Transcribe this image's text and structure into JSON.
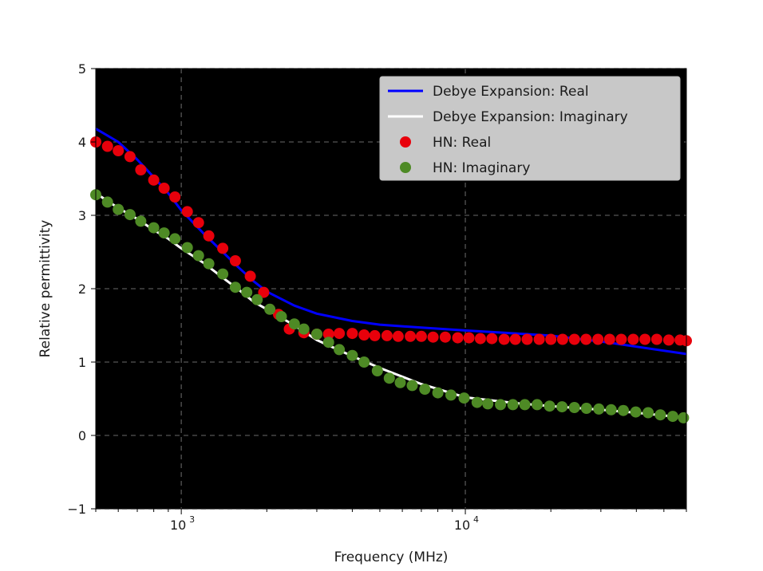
{
  "chart_data": {
    "type": "line",
    "xlabel": "Frequency (MHz)",
    "ylabel": "Relative permittivity",
    "xscale": "log",
    "xlim": [
      500,
      60000
    ],
    "ylim": [
      -1,
      5
    ],
    "yticks": [
      -1,
      0,
      1,
      2,
      3,
      4,
      5
    ],
    "xticks": [
      {
        "value": 1000,
        "label": "10",
        "exp": "3"
      },
      {
        "value": 10000,
        "label": "10",
        "exp": "4"
      }
    ],
    "grid": true,
    "legend_position": "top-right",
    "background": "#000000",
    "series": [
      {
        "name": "Debye Expansion: Real",
        "kind": "line",
        "color": "#0000ff",
        "points": [
          [
            500,
            4.18
          ],
          [
            600,
            4.0
          ],
          [
            700,
            3.76
          ],
          [
            800,
            3.52
          ],
          [
            900,
            3.3
          ],
          [
            1000,
            3.07
          ],
          [
            1200,
            2.75
          ],
          [
            1400,
            2.5
          ],
          [
            1600,
            2.28
          ],
          [
            1800,
            2.1
          ],
          [
            2000,
            1.96
          ],
          [
            2500,
            1.77
          ],
          [
            3000,
            1.66
          ],
          [
            4000,
            1.56
          ],
          [
            5000,
            1.51
          ],
          [
            7000,
            1.47
          ],
          [
            10000,
            1.43
          ],
          [
            15000,
            1.39
          ],
          [
            20000,
            1.36
          ],
          [
            30000,
            1.28
          ],
          [
            40000,
            1.21
          ],
          [
            60000,
            1.11
          ]
        ]
      },
      {
        "name": "Debye Expansion: Imaginary",
        "kind": "line",
        "color": "#ffffff",
        "points": [
          [
            500,
            3.3
          ],
          [
            600,
            3.1
          ],
          [
            700,
            2.95
          ],
          [
            800,
            2.8
          ],
          [
            900,
            2.68
          ],
          [
            1000,
            2.55
          ],
          [
            1200,
            2.35
          ],
          [
            1400,
            2.15
          ],
          [
            1600,
            1.98
          ],
          [
            1800,
            1.82
          ],
          [
            2000,
            1.72
          ],
          [
            2500,
            1.5
          ],
          [
            3000,
            1.3
          ],
          [
            4000,
            1.08
          ],
          [
            5000,
            0.92
          ],
          [
            7000,
            0.7
          ],
          [
            10000,
            0.52
          ],
          [
            15000,
            0.44
          ],
          [
            20000,
            0.4
          ],
          [
            30000,
            0.35
          ],
          [
            40000,
            0.31
          ],
          [
            60000,
            0.24
          ]
        ]
      },
      {
        "name": "HN: Real",
        "kind": "scatter",
        "color": "#e8000b",
        "points": [
          [
            500,
            4.0
          ],
          [
            550,
            3.94
          ],
          [
            600,
            3.88
          ],
          [
            660,
            3.8
          ],
          [
            720,
            3.62
          ],
          [
            800,
            3.48
          ],
          [
            870,
            3.37
          ],
          [
            950,
            3.25
          ],
          [
            1050,
            3.05
          ],
          [
            1150,
            2.9
          ],
          [
            1250,
            2.72
          ],
          [
            1400,
            2.55
          ],
          [
            1550,
            2.38
          ],
          [
            1750,
            2.17
          ],
          [
            1950,
            1.95
          ],
          [
            2200,
            1.65
          ],
          [
            2400,
            1.45
          ],
          [
            2700,
            1.4
          ],
          [
            3000,
            1.38
          ],
          [
            3300,
            1.38
          ],
          [
            3600,
            1.39
          ],
          [
            4000,
            1.39
          ],
          [
            4400,
            1.37
          ],
          [
            4800,
            1.36
          ],
          [
            5300,
            1.36
          ],
          [
            5800,
            1.35
          ],
          [
            6400,
            1.35
          ],
          [
            7000,
            1.35
          ],
          [
            7700,
            1.34
          ],
          [
            8500,
            1.34
          ],
          [
            9400,
            1.33
          ],
          [
            10300,
            1.33
          ],
          [
            11300,
            1.32
          ],
          [
            12400,
            1.32
          ],
          [
            13700,
            1.31
          ],
          [
            15000,
            1.31
          ],
          [
            16500,
            1.31
          ],
          [
            18200,
            1.31
          ],
          [
            20000,
            1.31
          ],
          [
            22000,
            1.31
          ],
          [
            24200,
            1.31
          ],
          [
            26600,
            1.31
          ],
          [
            29300,
            1.31
          ],
          [
            32200,
            1.31
          ],
          [
            35400,
            1.31
          ],
          [
            39000,
            1.31
          ],
          [
            42900,
            1.31
          ],
          [
            47200,
            1.31
          ],
          [
            52000,
            1.3
          ],
          [
            57000,
            1.3
          ],
          [
            60000,
            1.29
          ]
        ]
      },
      {
        "name": "HN: Imaginary",
        "kind": "scatter",
        "color": "#4e8a25",
        "points": [
          [
            500,
            3.28
          ],
          [
            550,
            3.18
          ],
          [
            600,
            3.08
          ],
          [
            660,
            3.01
          ],
          [
            720,
            2.92
          ],
          [
            800,
            2.83
          ],
          [
            870,
            2.76
          ],
          [
            950,
            2.68
          ],
          [
            1050,
            2.56
          ],
          [
            1150,
            2.45
          ],
          [
            1250,
            2.34
          ],
          [
            1400,
            2.2
          ],
          [
            1550,
            2.02
          ],
          [
            1700,
            1.95
          ],
          [
            1850,
            1.85
          ],
          [
            2050,
            1.72
          ],
          [
            2250,
            1.62
          ],
          [
            2500,
            1.52
          ],
          [
            2700,
            1.45
          ],
          [
            3000,
            1.38
          ],
          [
            3300,
            1.27
          ],
          [
            3600,
            1.17
          ],
          [
            4000,
            1.09
          ],
          [
            4400,
            1.0
          ],
          [
            4900,
            0.88
          ],
          [
            5400,
            0.78
          ],
          [
            5900,
            0.72
          ],
          [
            6500,
            0.68
          ],
          [
            7200,
            0.63
          ],
          [
            8000,
            0.58
          ],
          [
            8900,
            0.55
          ],
          [
            9900,
            0.51
          ],
          [
            11000,
            0.45
          ],
          [
            12000,
            0.43
          ],
          [
            13300,
            0.42
          ],
          [
            14700,
            0.42
          ],
          [
            16200,
            0.42
          ],
          [
            17900,
            0.42
          ],
          [
            19800,
            0.4
          ],
          [
            21900,
            0.39
          ],
          [
            24200,
            0.38
          ],
          [
            26700,
            0.37
          ],
          [
            29500,
            0.36
          ],
          [
            32600,
            0.35
          ],
          [
            36000,
            0.34
          ],
          [
            39800,
            0.32
          ],
          [
            44000,
            0.31
          ],
          [
            48600,
            0.28
          ],
          [
            53700,
            0.26
          ],
          [
            58600,
            0.24
          ]
        ]
      }
    ]
  }
}
